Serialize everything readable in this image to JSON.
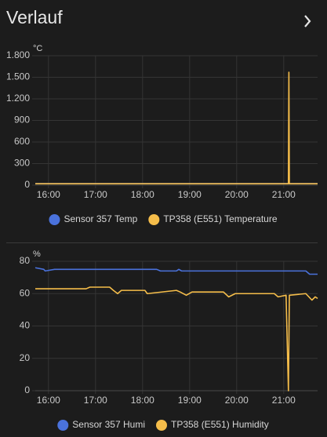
{
  "card": {
    "title": "Verlauf"
  },
  "chart_data": [
    {
      "type": "line",
      "y_label": "°C",
      "ylim": [
        0,
        1800
      ],
      "yticks": [
        0,
        300,
        600,
        900,
        {
          "value": 1200,
          "label": "1.200"
        },
        {
          "value": 1500,
          "label": "1.500"
        },
        {
          "value": 1800,
          "label": "1.800"
        }
      ],
      "xlim": [
        15.72,
        21.72
      ],
      "xticks": [
        {
          "value": 16,
          "label": "16:00"
        },
        {
          "value": 17,
          "label": "17:00"
        },
        {
          "value": 18,
          "label": "18:00"
        },
        {
          "value": 19,
          "label": "19:00"
        },
        {
          "value": 20,
          "label": "20:00"
        },
        {
          "value": 21,
          "label": "21:00"
        }
      ],
      "grid": true,
      "series": [
        {
          "name": "Sensor 357 Temp",
          "color": "#4a72dc",
          "x": [
            15.72,
            21.72
          ],
          "values": [
            21,
            21
          ]
        },
        {
          "name": "TP358 (E551) Temperature",
          "color": "#f5bd4a",
          "x": [
            15.72,
            21.1,
            21.11,
            21.12,
            21.72
          ],
          "values": [
            20,
            20,
            1570,
            20,
            20
          ]
        }
      ]
    },
    {
      "type": "line",
      "y_label": "%",
      "ylim": [
        0,
        80
      ],
      "yticks": [
        0,
        20,
        40,
        60,
        80
      ],
      "xlim": [
        15.72,
        21.72
      ],
      "xticks": [
        {
          "value": 16,
          "label": "16:00"
        },
        {
          "value": 17,
          "label": "17:00"
        },
        {
          "value": 18,
          "label": "18:00"
        },
        {
          "value": 19,
          "label": "19:00"
        },
        {
          "value": 20,
          "label": "20:00"
        },
        {
          "value": 21,
          "label": "21:00"
        }
      ],
      "grid": true,
      "series": [
        {
          "name": "Sensor 357 Humi",
          "color": "#4a72dc",
          "x": [
            15.72,
            15.9,
            15.93,
            16.13,
            18.3,
            18.38,
            18.72,
            18.77,
            18.83,
            21.47,
            21.55,
            21.72
          ],
          "values": [
            76,
            75,
            74,
            75,
            75,
            74,
            74,
            75,
            74,
            74,
            72,
            72
          ]
        },
        {
          "name": "TP358 (E551) Humidity",
          "color": "#f5bd4a",
          "x": [
            15.72,
            16.8,
            16.88,
            17.3,
            17.38,
            17.47,
            17.55,
            18.05,
            18.1,
            18.72,
            18.8,
            18.93,
            19.05,
            19.72,
            19.83,
            19.97,
            20.8,
            20.88,
            21.05,
            21.1,
            21.12,
            21.47,
            21.6,
            21.67,
            21.72
          ],
          "values": [
            63,
            63,
            64,
            64,
            62,
            60,
            62,
            62,
            60,
            62,
            61,
            59,
            61,
            61,
            58,
            60,
            60,
            58,
            59,
            0,
            59,
            60,
            56,
            58,
            57
          ]
        }
      ]
    }
  ]
}
